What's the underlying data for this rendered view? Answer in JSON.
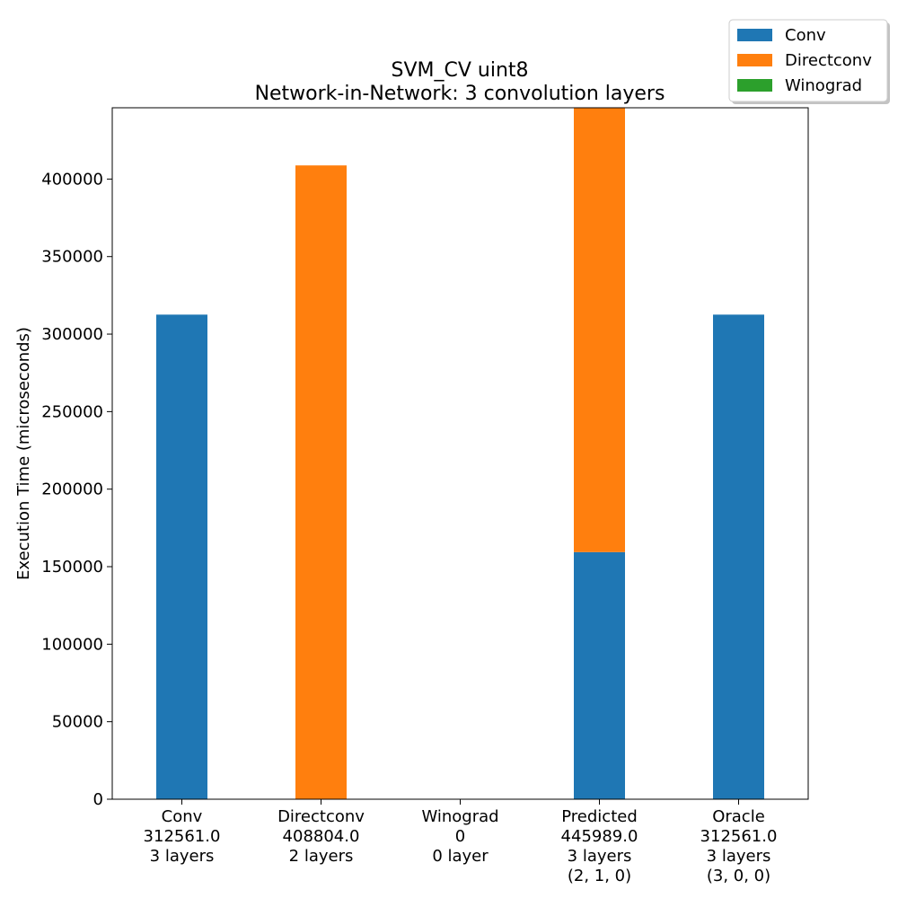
{
  "chart_data": {
    "type": "bar",
    "stacked": true,
    "title": "SVM_CV uint8",
    "subtitle": "Network-in-Network: 3 convolution layers",
    "xlabel": "",
    "ylabel": "Execution Time (microseconds)",
    "ylim": [
      0,
      445989
    ],
    "yticks": [
      0,
      50000,
      100000,
      150000,
      200000,
      250000,
      300000,
      350000,
      400000
    ],
    "grid": false,
    "legend_position": "top-right",
    "categories": [
      [
        "Conv",
        "312561.0",
        "3 layers"
      ],
      [
        "Directconv",
        "408804.0",
        "2 layers"
      ],
      [
        "Winograd",
        "0",
        "0 layer"
      ],
      [
        "Predicted",
        "445989.0",
        "3 layers",
        "(2, 1, 0)"
      ],
      [
        "Oracle",
        "312561.0",
        "3 layers",
        "(3, 0, 0)"
      ]
    ],
    "series": [
      {
        "name": "Conv",
        "color": "#1f77b4",
        "values": [
          312561,
          0,
          0,
          159400,
          312561
        ]
      },
      {
        "name": "Directconv",
        "color": "#ff7f0e",
        "values": [
          0,
          408804,
          0,
          286589,
          0
        ]
      },
      {
        "name": "Winograd",
        "color": "#2ca02c",
        "values": [
          0,
          0,
          0,
          0,
          0
        ]
      }
    ]
  }
}
